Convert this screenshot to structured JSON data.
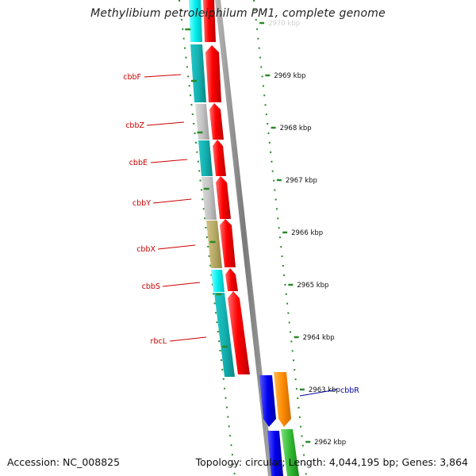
{
  "title": "Methylibium petroleiphilum PM1, complete genome",
  "footer": {
    "accession": "Accession: NC_008825",
    "topology": "Topology: circular; Length: 4,044,195 bp; Genes: 3,864"
  },
  "colors": {
    "forward_gene": "#ff0000",
    "reverse_gene": "#0000ff",
    "orange_gene": "#ff8c00",
    "green_gene": "#33bb33",
    "backbone": "#8c8c8c",
    "tick": "#2a8a2a",
    "label_red": "#cc0000",
    "label_blue": "#0000aa",
    "teal": "#1aa8a8",
    "cyan": "#00e5e5",
    "gray": "#bdbdbd",
    "olive": "#b3a764"
  },
  "scale_labels": [
    "2970 kbp",
    "2969 kbp",
    "2968 kbp",
    "2967 kbp",
    "2966 kbp",
    "2965 kbp",
    "2964 kbp",
    "2963 kbp",
    "2962 kbp"
  ],
  "genes": [
    {
      "name": "cbbF",
      "color": "label_red"
    },
    {
      "name": "cbbZ",
      "color": "label_red"
    },
    {
      "name": "cbbE",
      "color": "label_red"
    },
    {
      "name": "cbbY",
      "color": "label_red"
    },
    {
      "name": "cbbX",
      "color": "label_red"
    },
    {
      "name": "cbbS",
      "color": "label_red"
    },
    {
      "name": "rbcL",
      "color": "label_red"
    },
    {
      "name": "cbbR",
      "color": "label_blue"
    }
  ]
}
